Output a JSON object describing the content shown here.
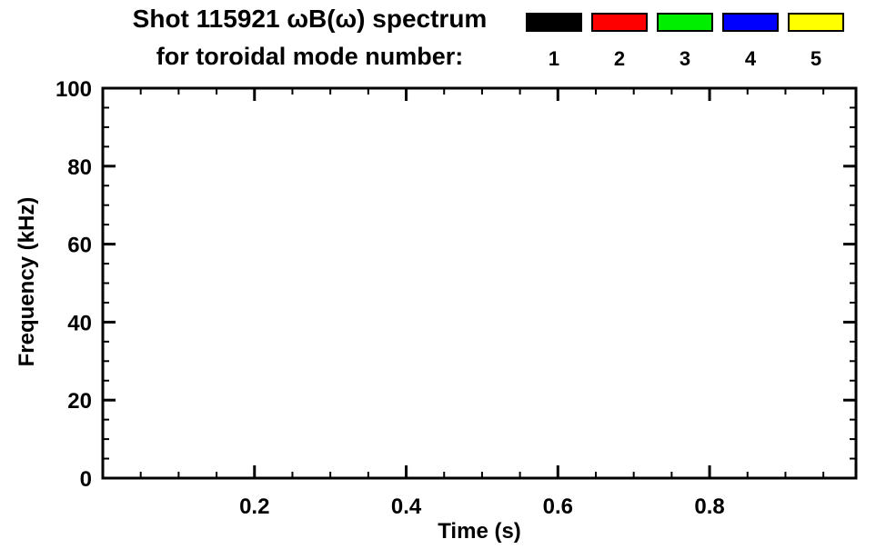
{
  "chart_data": {
    "type": "scatter",
    "title": "Shot 115921 ωB(ω) spectrum",
    "subtitle": "for toroidal mode number:",
    "xlabel": "Time (s)",
    "ylabel": "Frequency (kHz)",
    "xlim": [
      0,
      0.993
    ],
    "ylim": [
      0,
      100
    ],
    "xticks": [
      0.2,
      0.4,
      0.6,
      0.8
    ],
    "xtick_labels": [
      "0.2",
      "0.4",
      "0.6",
      "0.8"
    ],
    "yticks": [
      0,
      20,
      40,
      60,
      80,
      100
    ],
    "ytick_labels": [
      "0",
      "20",
      "40",
      "60",
      "80",
      "100"
    ],
    "x_minor_tick_step": 0.05,
    "y_minor_tick_step": 5,
    "grid": false,
    "legend_position": "top-right-above-plot",
    "plot_background": "#ffffff",
    "frame_color": "#000000",
    "series": [
      {
        "name": "1",
        "color": "#000000",
        "points": []
      },
      {
        "name": "2",
        "color": "#ff0000",
        "points": []
      },
      {
        "name": "3",
        "color": "#00ee00",
        "points": []
      },
      {
        "name": "4",
        "color": "#0000ff",
        "points": []
      },
      {
        "name": "5",
        "color": "#ffff00",
        "points": []
      }
    ]
  }
}
